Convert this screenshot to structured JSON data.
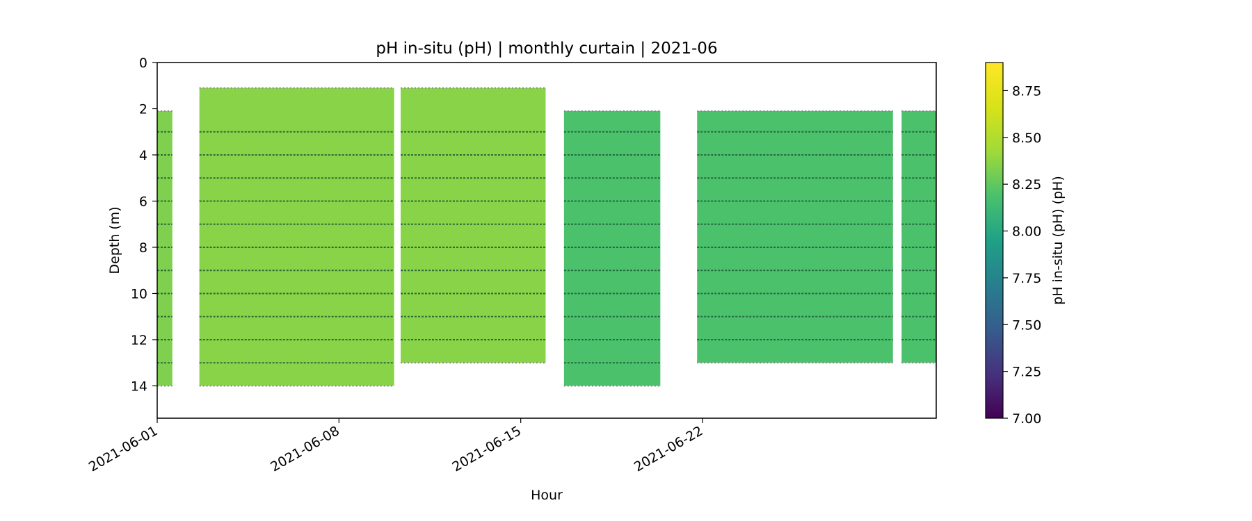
{
  "chart_data": {
    "type": "heatmap",
    "title": "pH in-situ (pH) | monthly curtain | 2021-06",
    "xlabel": "Hour",
    "ylabel": "Depth (m)",
    "x_range": [
      "2021-06-01",
      "2021-07-01"
    ],
    "ylim": [
      15.4,
      0
    ],
    "y_ticks": [
      "0",
      "2",
      "4",
      "6",
      "8",
      "10",
      "12",
      "14"
    ],
    "x_ticks": [
      "2021-06-01",
      "2021-06-08",
      "2021-06-15",
      "2021-06-22"
    ],
    "sensor_depths": [
      3,
      4,
      5,
      6,
      7,
      8,
      9,
      10,
      11,
      12,
      13
    ],
    "segments": [
      {
        "start": "2021-06-01T00:00",
        "end": "2021-06-01T14:00",
        "top": 2.1,
        "bottom": 14.0,
        "ph": 8.33
      },
      {
        "start": "2021-06-02T15:00",
        "end": "2021-06-10T03:00",
        "top": 1.1,
        "bottom": 14.0,
        "ph": 8.36
      },
      {
        "start": "2021-06-10T09:00",
        "end": "2021-06-15T23:00",
        "top": 1.1,
        "bottom": 13.0,
        "ph": 8.36
      },
      {
        "start": "2021-06-16T16:00",
        "end": "2021-06-20T09:00",
        "top": 2.1,
        "bottom": 14.0,
        "ph": 8.19
      },
      {
        "start": "2021-06-21T19:00",
        "end": "2021-06-29T08:00",
        "top": 2.1,
        "bottom": 13.0,
        "ph": 8.19
      },
      {
        "start": "2021-06-29T16:00",
        "end": "2021-07-01T00:00",
        "top": 2.1,
        "bottom": 13.0,
        "ph": 8.19
      }
    ],
    "colorbar": {
      "label": "pH in-situ (pH) (pH)",
      "min": 7.0,
      "max": 8.9,
      "ticks": [
        "7.00",
        "7.25",
        "7.50",
        "7.75",
        "8.00",
        "8.25",
        "8.50",
        "8.75"
      ],
      "colormap": "viridis"
    },
    "grid": false,
    "legend": "none"
  }
}
